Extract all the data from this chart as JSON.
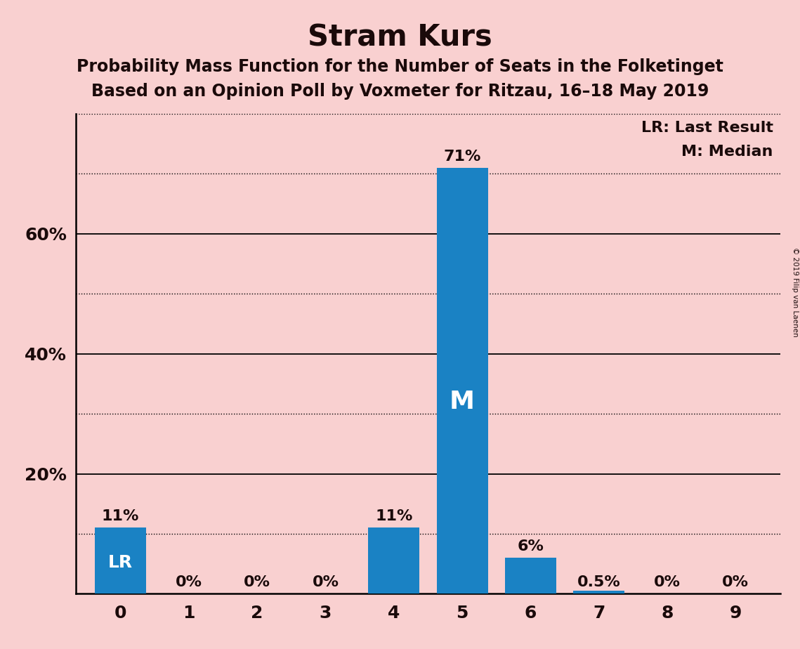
{
  "title": "Stram Kurs",
  "subtitle1": "Probability Mass Function for the Number of Seats in the Folketinget",
  "subtitle2": "Based on an Opinion Poll by Voxmeter for Ritzau, 16–18 May 2019",
  "copyright": "© 2019 Filip van Laenen",
  "categories": [
    0,
    1,
    2,
    3,
    4,
    5,
    6,
    7,
    8,
    9
  ],
  "values": [
    0.11,
    0.0,
    0.0,
    0.0,
    0.11,
    0.71,
    0.06,
    0.005,
    0.0,
    0.0
  ],
  "bar_labels": [
    "11%",
    "0%",
    "0%",
    "0%",
    "11%",
    "71%",
    "6%",
    "0.5%",
    "0%",
    "0%"
  ],
  "bar_color": "#1a82c4",
  "background_color": "#f9d0d0",
  "last_result_seat": 0,
  "median_seat": 5,
  "lr_label": "LR",
  "median_label": "M",
  "legend_lr": "LR: Last Result",
  "legend_m": "M: Median",
  "ylim": [
    0,
    0.8
  ],
  "solid_lines": [
    0.2,
    0.4,
    0.6
  ],
  "dotted_lines": [
    0.1,
    0.3,
    0.5,
    0.7,
    0.8
  ],
  "yticks": [
    0.2,
    0.4,
    0.6
  ],
  "ytick_labels": [
    "20%",
    "40%",
    "60%"
  ],
  "title_fontsize": 30,
  "subtitle_fontsize": 17,
  "bar_label_fontsize": 16,
  "axis_tick_fontsize": 18,
  "legend_fontsize": 16
}
